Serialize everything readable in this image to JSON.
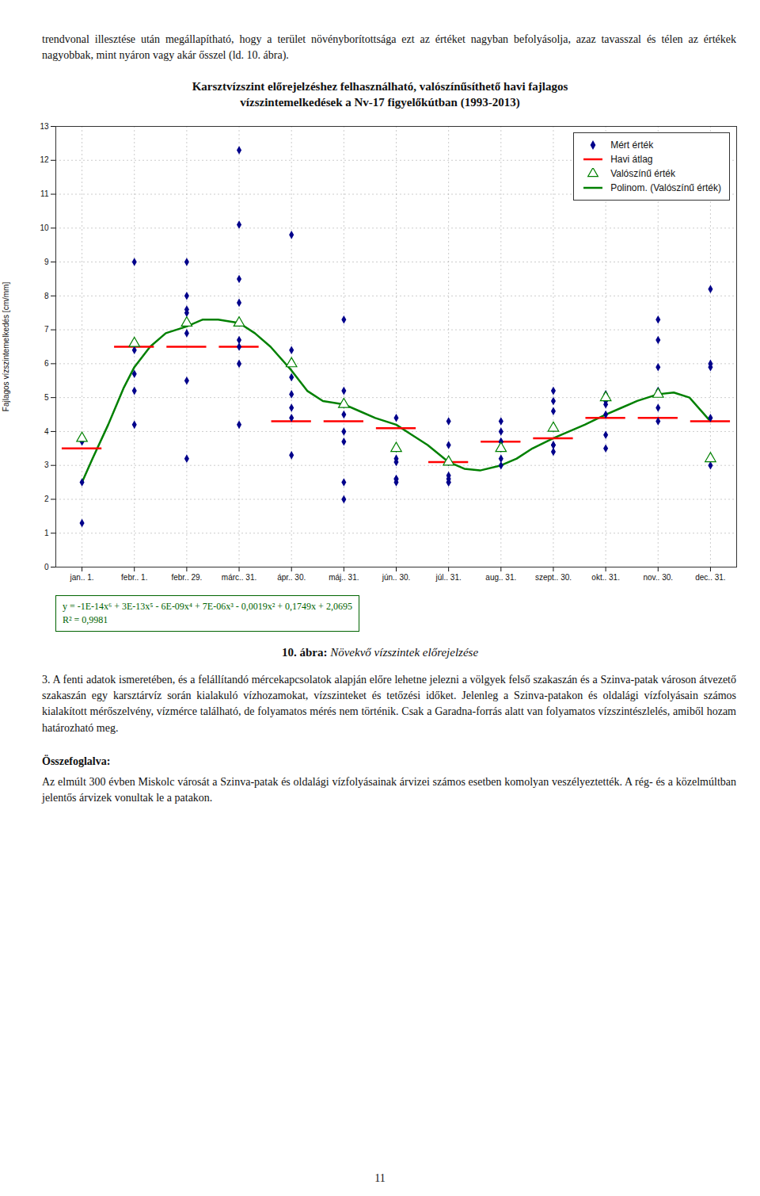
{
  "text_above": "trendvonal illesztése után megállapítható, hogy a terület növényborítottsága ezt az értéket nagyban befolyásolja, azaz tavasszal és télen az értékek nagyobbak, mint nyáron vagy akár ősszel (ld. 10. ábra).",
  "chart_data": {
    "type": "scatter",
    "title": "Karsztvízszint előrejelzéshez felhasználható, valószínűsíthető havi fajlagos\nvízszintemelkedések a Nv-17 figyelőkútban (1993-2013)",
    "ylabel": "Fajlagos vízszintemelkedés [cm/mm]",
    "xlim": [
      -0.5,
      12.5
    ],
    "xticks": [
      {
        "value": 0,
        "label": "jan.. 1."
      },
      {
        "value": 1,
        "label": "febr.. 1."
      },
      {
        "value": 2,
        "label": "febr.. 29."
      },
      {
        "value": 3,
        "label": "márc.. 31."
      },
      {
        "value": 4,
        "label": "ápr.. 30."
      },
      {
        "value": 5,
        "label": "máj.. 31."
      },
      {
        "value": 6,
        "label": "jún.. 30."
      },
      {
        "value": 7,
        "label": "júl.. 31."
      },
      {
        "value": 8,
        "label": "aug.. 31."
      },
      {
        "value": 9,
        "label": "szept.. 30."
      },
      {
        "value": 10,
        "label": "okt.. 31."
      },
      {
        "value": 11,
        "label": "nov.. 30."
      },
      {
        "value": 12,
        "label": "dec.. 31."
      }
    ],
    "ylim": [
      0,
      13
    ],
    "yticks": [
      0,
      1,
      2,
      3,
      4,
      5,
      6,
      7,
      8,
      9,
      10,
      11,
      12,
      13
    ],
    "grid": true,
    "legend": "upper right",
    "annotations": [
      {
        "text": "y = -1E-14x⁶ + 3E-13x⁵ - 6E-09x⁴ + 7E-06x³ - 0,0019x² + 0,1749x + 2,0695",
        "color": "#006400"
      },
      {
        "text": "R² = 0,9981",
        "color": "#006400"
      }
    ],
    "series": [
      {
        "name": "Mért érték",
        "type": "scatter",
        "marker": "diamond",
        "color": "#00008B",
        "x": [
          0,
          0,
          0,
          1,
          1,
          1,
          1,
          1,
          2,
          2,
          2,
          2,
          2,
          2,
          2,
          3,
          3,
          3,
          3,
          3,
          3,
          3,
          3,
          3,
          4,
          4,
          4,
          4,
          4,
          4,
          4,
          5,
          5,
          5,
          5,
          5,
          5,
          5,
          5,
          6,
          6,
          6,
          6,
          6,
          6,
          6,
          7,
          7,
          7,
          7,
          7,
          7,
          7,
          8,
          8,
          8,
          8,
          8,
          8,
          8,
          9,
          9,
          9,
          9,
          9,
          9,
          9,
          10,
          10,
          10,
          10,
          10,
          10,
          11,
          11,
          11,
          11,
          11,
          11,
          12,
          12,
          12,
          12,
          12,
          12
        ],
        "values": [
          3.7,
          2.5,
          1.3,
          6.4,
          5.2,
          4.2,
          9.0,
          5.7,
          9.0,
          7.6,
          7.5,
          6.9,
          5.5,
          8.0,
          3.2,
          12.3,
          10.1,
          8.5,
          7.8,
          7.2,
          6.7,
          6.5,
          6.0,
          4.2,
          9.8,
          6.4,
          5.6,
          5.1,
          4.7,
          4.4,
          3.3,
          7.3,
          5.2,
          4.8,
          4.5,
          4.0,
          3.7,
          2.5,
          2.0,
          4.4,
          3.5,
          3.2,
          3.1,
          2.6,
          2.5,
          2.6,
          4.3,
          3.6,
          3.1,
          2.5,
          2.5,
          2.6,
          2.7,
          4.3,
          4.0,
          3.7,
          3.5,
          3.2,
          3.0,
          3.7,
          5.2,
          4.9,
          4.6,
          4.1,
          3.6,
          3.4,
          3.6,
          5.1,
          4.9,
          4.8,
          4.5,
          3.9,
          3.5,
          7.3,
          6.7,
          5.9,
          5.2,
          4.7,
          4.3,
          8.2,
          6.0,
          5.9,
          4.4,
          3.2,
          3.0
        ]
      },
      {
        "name": "Havi átlag",
        "type": "hline",
        "color": "#FF0000",
        "x": [
          0,
          1,
          2,
          3,
          4,
          5,
          6,
          7,
          8,
          9,
          10,
          11,
          12
        ],
        "values": [
          3.5,
          6.5,
          6.5,
          6.5,
          4.3,
          4.3,
          4.1,
          3.1,
          3.7,
          3.8,
          4.4,
          4.4,
          4.3
        ]
      },
      {
        "name": "Valószínű érték",
        "type": "scatter",
        "marker": "triangle",
        "color": "#008000",
        "x": [
          0,
          1,
          2,
          3,
          4,
          5,
          6,
          7,
          8,
          9,
          10,
          11,
          12
        ],
        "values": [
          3.8,
          6.6,
          7.2,
          7.2,
          6.0,
          4.8,
          3.5,
          3.1,
          3.5,
          4.1,
          5.0,
          5.1,
          3.2
        ]
      },
      {
        "name": "Polinom. (Valószínű érték)",
        "type": "line",
        "color": "#008000",
        "x": [
          0,
          0.2,
          0.5,
          0.8,
          1.0,
          1.3,
          1.6,
          2.0,
          2.3,
          2.6,
          3.0,
          3.3,
          3.6,
          4.0,
          4.3,
          4.6,
          5.0,
          5.3,
          5.6,
          6.0,
          6.3,
          6.6,
          7.0,
          7.3,
          7.6,
          8.0,
          8.3,
          8.6,
          9.0,
          9.3,
          9.6,
          10.0,
          10.3,
          10.6,
          11.0,
          11.3,
          11.6,
          12.0
        ],
        "values": [
          2.5,
          3.2,
          4.2,
          5.3,
          5.9,
          6.5,
          6.9,
          7.1,
          7.3,
          7.3,
          7.2,
          6.9,
          6.5,
          5.8,
          5.2,
          4.9,
          4.8,
          4.6,
          4.4,
          4.2,
          3.9,
          3.6,
          3.1,
          2.9,
          2.85,
          3.0,
          3.2,
          3.5,
          3.8,
          4.0,
          4.2,
          4.5,
          4.7,
          4.9,
          5.1,
          5.15,
          5.0,
          4.3
        ]
      }
    ]
  },
  "caption_bold": "10. ábra:",
  "caption_normal": " Növekvő vízszintek előrejelzése",
  "para3": "3. A fenti adatok ismeretében, és a felállítandó mércekapcsolatok alapján előre lehetne jelezni a völgyek felső szakaszán és a Szinva-patak városon átvezető szakaszán egy karsztárvíz során kialakuló vízhozamokat, vízszinteket és tetőzési időket. Jelenleg a Szinva-patakon és oldalági vízfolyásain számos kialakított mérőszelvény, vízmérce található, de folyamatos mérés nem történik. Csak a Garadna-forrás alatt van folyamatos vízszintészlelés, amiből hozam határozható meg.",
  "section_title": "Összefoglalva:",
  "para4": "Az elmúlt 300 évben Miskolc városát a Szinva-patak és oldalági vízfolyásainak árvizei számos esetben komolyan veszélyeztették. A rég- és a közelmúltban jelentős árvizek vonultak le a patakon.",
  "page_number": "11"
}
